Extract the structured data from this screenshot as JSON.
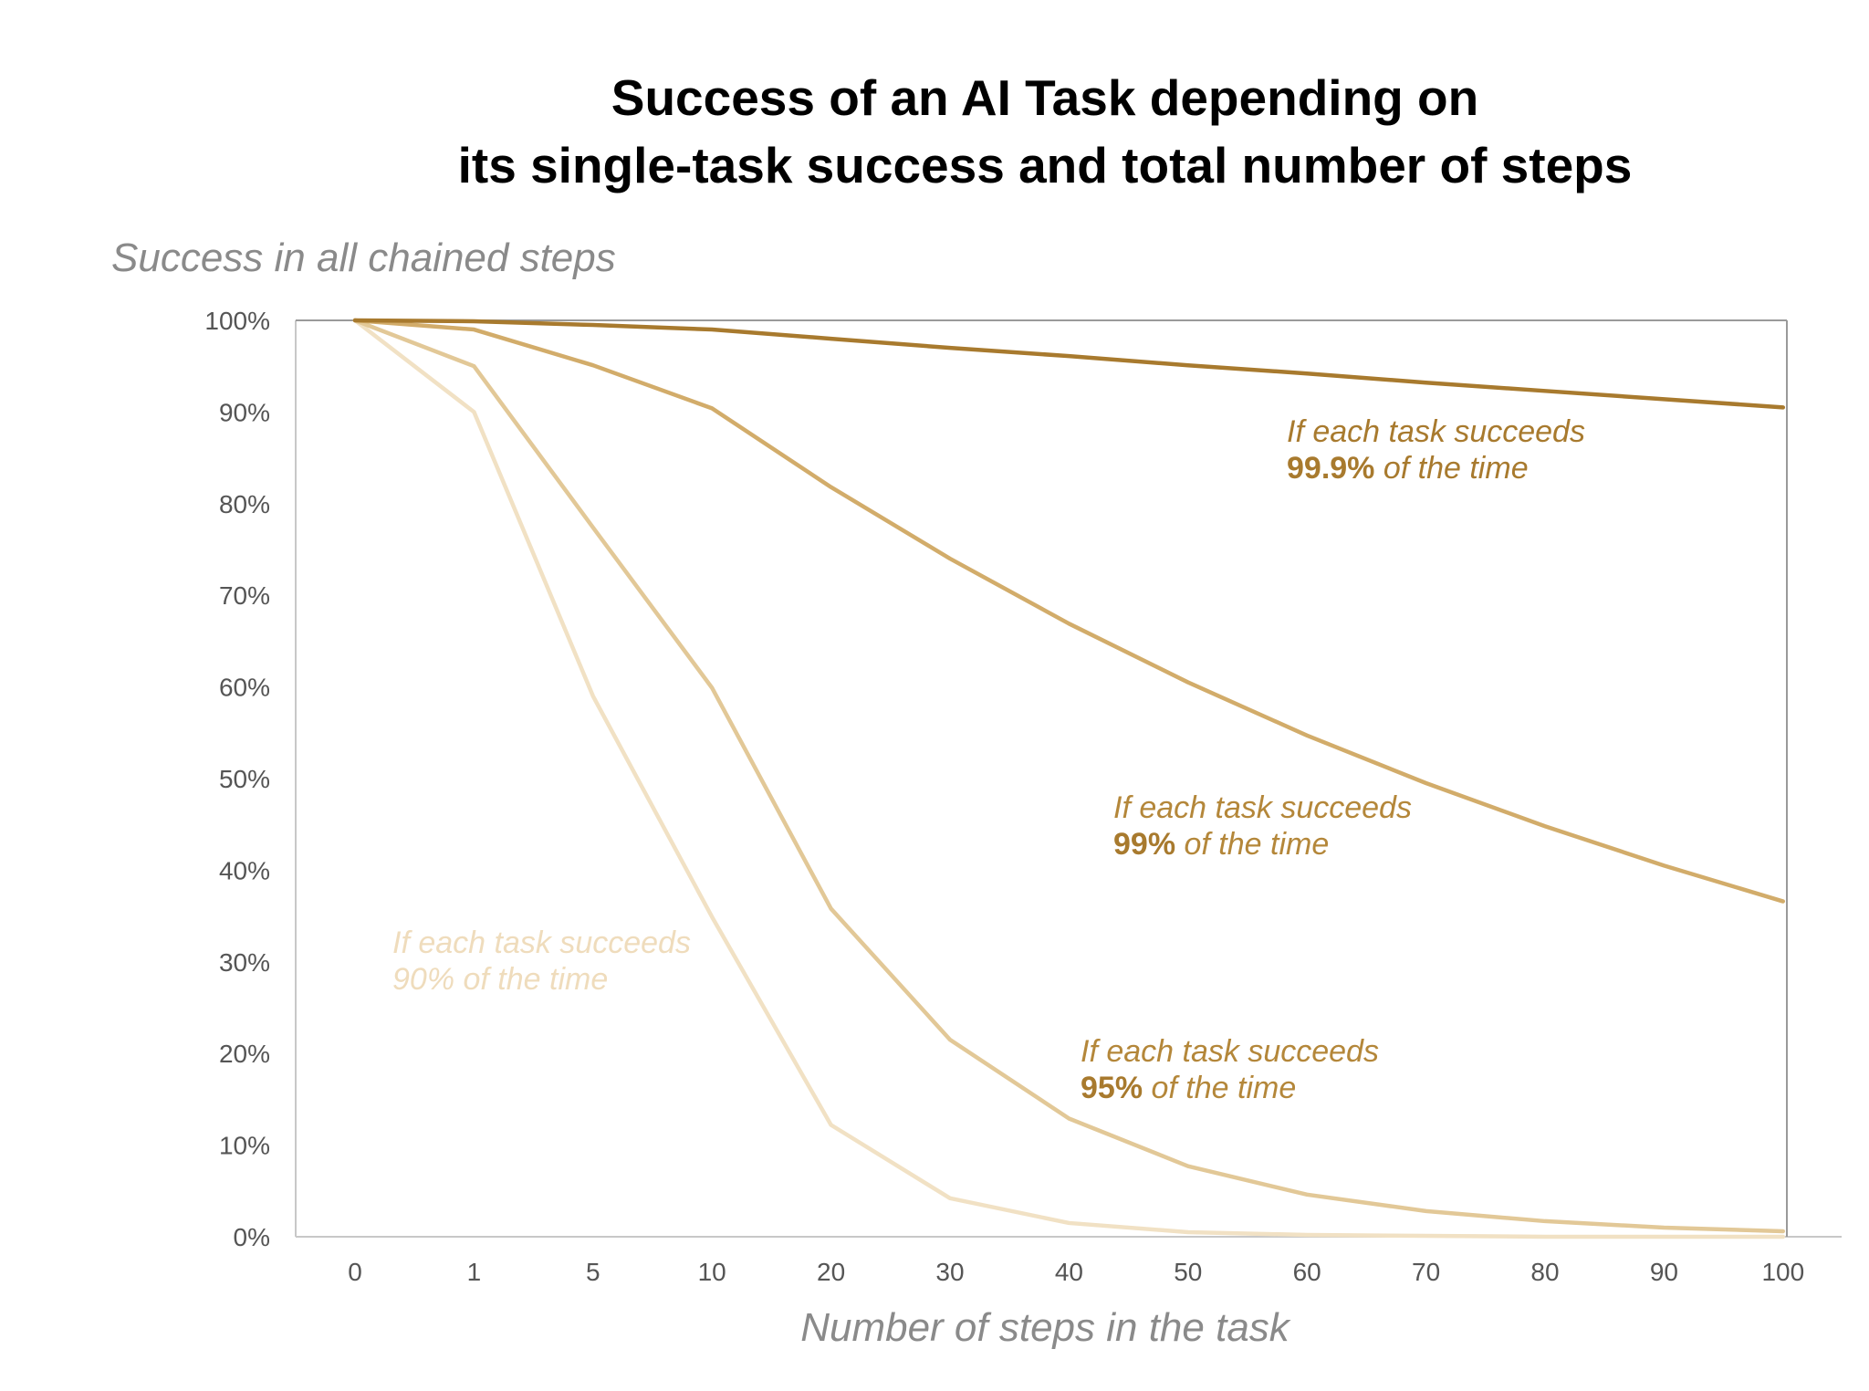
{
  "chart_data": {
    "type": "line",
    "title_line1": "Success of an AI Task depending on",
    "title_line2": "its single-task success and total number of steps",
    "ylabel": "Success in all chained steps",
    "xlabel": "Number of steps in the task",
    "categories": [
      "0",
      "1",
      "5",
      "10",
      "20",
      "30",
      "40",
      "50",
      "60",
      "70",
      "80",
      "90",
      "100"
    ],
    "yticks": [
      "0%",
      "10%",
      "20%",
      "30%",
      "40%",
      "50%",
      "60%",
      "70%",
      "80%",
      "90%",
      "100%"
    ],
    "ylim": [
      0,
      100
    ],
    "series": [
      {
        "values": [
          100,
          99.9,
          99.5,
          99.0,
          98.0,
          97.0,
          96.1,
          95.1,
          94.2,
          93.2,
          92.3,
          91.4,
          90.5
        ],
        "color": "#a87a2e"
      },
      {
        "values": [
          100,
          99.0,
          95.1,
          90.4,
          81.8,
          74.0,
          66.9,
          60.5,
          54.7,
          49.5,
          44.8,
          40.5,
          36.6
        ],
        "color": "#d2ac6a"
      },
      {
        "values": [
          100,
          95.0,
          77.4,
          59.9,
          35.8,
          21.5,
          12.9,
          7.7,
          4.6,
          2.8,
          1.7,
          1.0,
          0.6
        ],
        "color": "#e2c897"
      },
      {
        "values": [
          100,
          90.0,
          59.0,
          34.9,
          12.2,
          4.2,
          1.5,
          0.5,
          0.2,
          0.1,
          0.0,
          0.0,
          0.0
        ],
        "color": "#f1e1c4"
      }
    ],
    "annotations": [
      {
        "line1": "If each task succeeds",
        "bold": "99.9%",
        "rest": " of the time",
        "color": "#a87a2e",
        "bold_color": "#a87a2e"
      },
      {
        "line1": "If each task succeeds",
        "bold": "99%",
        "rest": " of the time",
        "color": "#b4873a",
        "bold_color": "#a87a2e"
      },
      {
        "line1": "If each task succeeds",
        "bold": "95%",
        "rest": " of the time",
        "color": "#b4873a",
        "bold_color": "#a87a2e"
      },
      {
        "line1": "If each task succeeds",
        "bold": "",
        "rest": "90% of the time",
        "color": "#efdcbc",
        "bold_color": "#efdcbc"
      }
    ],
    "grid": false,
    "legend": "none"
  }
}
